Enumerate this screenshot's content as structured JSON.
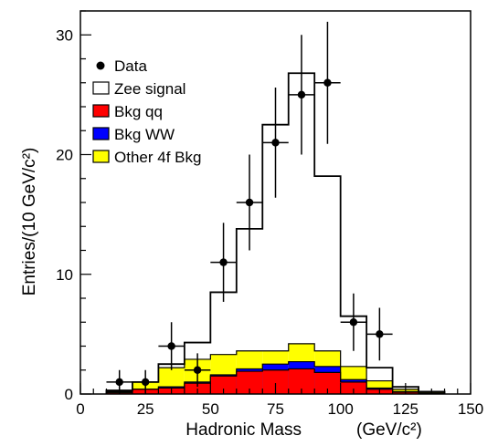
{
  "chart_data": {
    "type": "histogram",
    "xlabel": "Hadronic Mass",
    "xlabel_units": "(GeV/c²)",
    "ylabel": "Entries/(10 GeV/c²)",
    "xlim": [
      0,
      150
    ],
    "ylim": [
      0,
      32
    ],
    "x_ticks": [
      0,
      25,
      50,
      75,
      100,
      125,
      150
    ],
    "x_tick_labels": [
      "0",
      "25",
      "50",
      "75",
      "100",
      "125",
      "150"
    ],
    "y_ticks": [
      0,
      10,
      20,
      30
    ],
    "y_tick_labels": [
      "0",
      "10",
      "20",
      "30"
    ],
    "bin_edges": [
      10,
      20,
      30,
      40,
      50,
      60,
      70,
      80,
      90,
      100,
      110,
      120,
      130,
      140
    ],
    "stack_totals": {
      "other_4f_bkg": [
        0.2,
        1.0,
        2.2,
        2.9,
        3.3,
        3.6,
        3.6,
        4.2,
        3.6,
        2.3,
        1.1,
        0.4,
        0.2
      ],
      "bkg_ww": [
        0.1,
        0.4,
        0.6,
        1.0,
        1.6,
        2.1,
        2.5,
        2.7,
        2.3,
        1.2,
        0.5,
        0.2,
        0.1
      ],
      "bkg_qq": [
        0.1,
        0.4,
        0.5,
        0.9,
        1.5,
        1.9,
        2.0,
        2.1,
        1.8,
        1.0,
        0.4,
        0.15,
        0.05
      ],
      "zee_signal": [
        0.3,
        1.0,
        2.5,
        4.3,
        8.5,
        13.8,
        22.5,
        26.8,
        18.2,
        6.5,
        2.2,
        0.6,
        0.2
      ]
    },
    "data": [
      {
        "x": 15,
        "y": 1,
        "err_lo": 1,
        "err_hi": 1
      },
      {
        "x": 25,
        "y": 1,
        "err_lo": 1,
        "err_hi": 1
      },
      {
        "x": 35,
        "y": 4,
        "err_lo": 2,
        "err_hi": 2
      },
      {
        "x": 45,
        "y": 2,
        "err_lo": 1.4,
        "err_hi": 1.4
      },
      {
        "x": 55,
        "y": 11,
        "err_lo": 3.3,
        "err_hi": 3.3
      },
      {
        "x": 65,
        "y": 16,
        "err_lo": 4,
        "err_hi": 4
      },
      {
        "x": 75,
        "y": 21,
        "err_lo": 4.6,
        "err_hi": 4.6
      },
      {
        "x": 85,
        "y": 25,
        "err_lo": 5,
        "err_hi": 5
      },
      {
        "x": 95,
        "y": 26,
        "err_lo": 5.1,
        "err_hi": 5.1
      },
      {
        "x": 105,
        "y": 6,
        "err_lo": 2.4,
        "err_hi": 2.4
      },
      {
        "x": 115,
        "y": 5,
        "err_lo": 2.2,
        "err_hi": 2.2
      }
    ],
    "legend": [
      {
        "key": "data",
        "label": "Data",
        "marker": "dot",
        "color": "#000000"
      },
      {
        "key": "zee_signal",
        "label": "Zee signal",
        "marker": "box",
        "color": "#ffffff"
      },
      {
        "key": "bkg_qq",
        "label": "Bkg qq",
        "marker": "box",
        "color": "#ff0000"
      },
      {
        "key": "bkg_ww",
        "label": "Bkg WW",
        "marker": "box",
        "color": "#0000ff"
      },
      {
        "key": "other_4f_bkg",
        "label": "Other 4f Bkg",
        "marker": "box",
        "color": "#ffff00"
      }
    ],
    "legend_position": "top-left",
    "grid": false
  }
}
